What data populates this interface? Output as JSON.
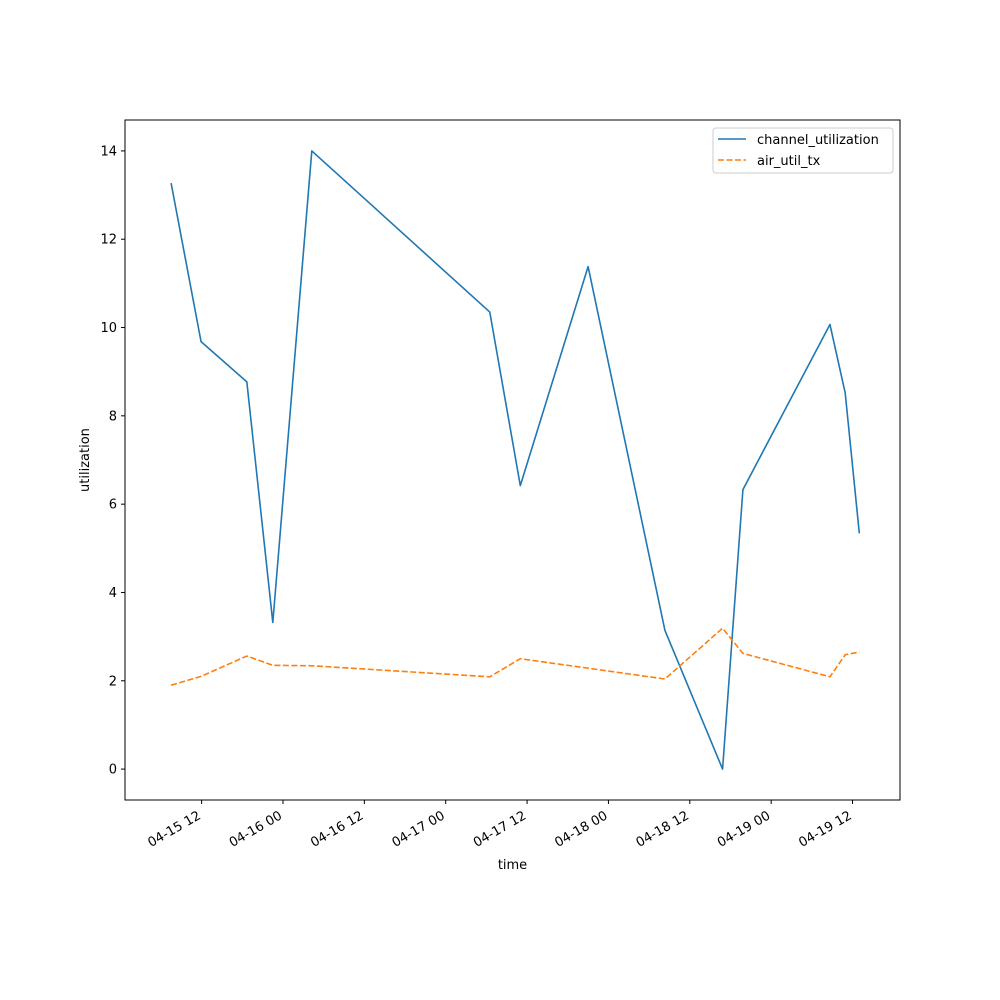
{
  "chart_data": {
    "type": "line",
    "xlabel": "time",
    "ylabel": "utilization",
    "x_type": "datetime",
    "xlim": [
      "2024-04-15T00:42",
      "2024-04-19T19:00"
    ],
    "ylim": [
      -0.7,
      14.7
    ],
    "x_ticks": [
      {
        "t": "2024-04-15T12:00",
        "label": "04-15 12"
      },
      {
        "t": "2024-04-16T00:00",
        "label": "04-16 00"
      },
      {
        "t": "2024-04-16T12:00",
        "label": "04-16 12"
      },
      {
        "t": "2024-04-17T00:00",
        "label": "04-17 00"
      },
      {
        "t": "2024-04-17T12:00",
        "label": "04-17 12"
      },
      {
        "t": "2024-04-18T00:00",
        "label": "04-18 00"
      },
      {
        "t": "2024-04-18T12:00",
        "label": "04-18 12"
      },
      {
        "t": "2024-04-19T00:00",
        "label": "04-19 00"
      },
      {
        "t": "2024-04-19T12:00",
        "label": "04-19 12"
      }
    ],
    "y_ticks": [
      0,
      2,
      4,
      6,
      8,
      10,
      12,
      14
    ],
    "grid": false,
    "legend": "top-right",
    "series": [
      {
        "name": "channel_utilization",
        "color": "#1f77b4",
        "style": "solid",
        "points": [
          {
            "x": "2024-04-15T07:30",
            "y": 13.27
          },
          {
            "x": "2024-04-15T11:55",
            "y": 9.68
          },
          {
            "x": "2024-04-15T18:40",
            "y": 8.77
          },
          {
            "x": "2024-04-15T22:30",
            "y": 3.32
          },
          {
            "x": "2024-04-16T04:15",
            "y": 14.0
          },
          {
            "x": "2024-04-17T06:30",
            "y": 10.35
          },
          {
            "x": "2024-04-17T11:00",
            "y": 6.42
          },
          {
            "x": "2024-04-17T21:00",
            "y": 11.38
          },
          {
            "x": "2024-04-18T08:20",
            "y": 3.14
          },
          {
            "x": "2024-04-18T16:50",
            "y": 0.0
          },
          {
            "x": "2024-04-18T19:50",
            "y": 6.33
          },
          {
            "x": "2024-04-19T08:40",
            "y": 10.07
          },
          {
            "x": "2024-04-19T10:55",
            "y": 8.52
          },
          {
            "x": "2024-04-19T13:00",
            "y": 5.34
          }
        ]
      },
      {
        "name": "air_util_tx",
        "color": "#ff7f0e",
        "style": "dashed",
        "points": [
          {
            "x": "2024-04-15T07:30",
            "y": 1.9
          },
          {
            "x": "2024-04-15T11:55",
            "y": 2.1
          },
          {
            "x": "2024-04-15T18:40",
            "y": 2.56
          },
          {
            "x": "2024-04-15T22:30",
            "y": 2.35
          },
          {
            "x": "2024-04-16T04:15",
            "y": 2.34
          },
          {
            "x": "2024-04-17T06:30",
            "y": 2.09
          },
          {
            "x": "2024-04-17T11:00",
            "y": 2.5
          },
          {
            "x": "2024-04-18T08:20",
            "y": 2.04
          },
          {
            "x": "2024-04-18T16:50",
            "y": 3.19
          },
          {
            "x": "2024-04-18T19:50",
            "y": 2.62
          },
          {
            "x": "2024-04-19T08:40",
            "y": 2.09
          },
          {
            "x": "2024-04-19T10:55",
            "y": 2.59
          },
          {
            "x": "2024-04-19T13:00",
            "y": 2.65
          }
        ]
      }
    ]
  }
}
